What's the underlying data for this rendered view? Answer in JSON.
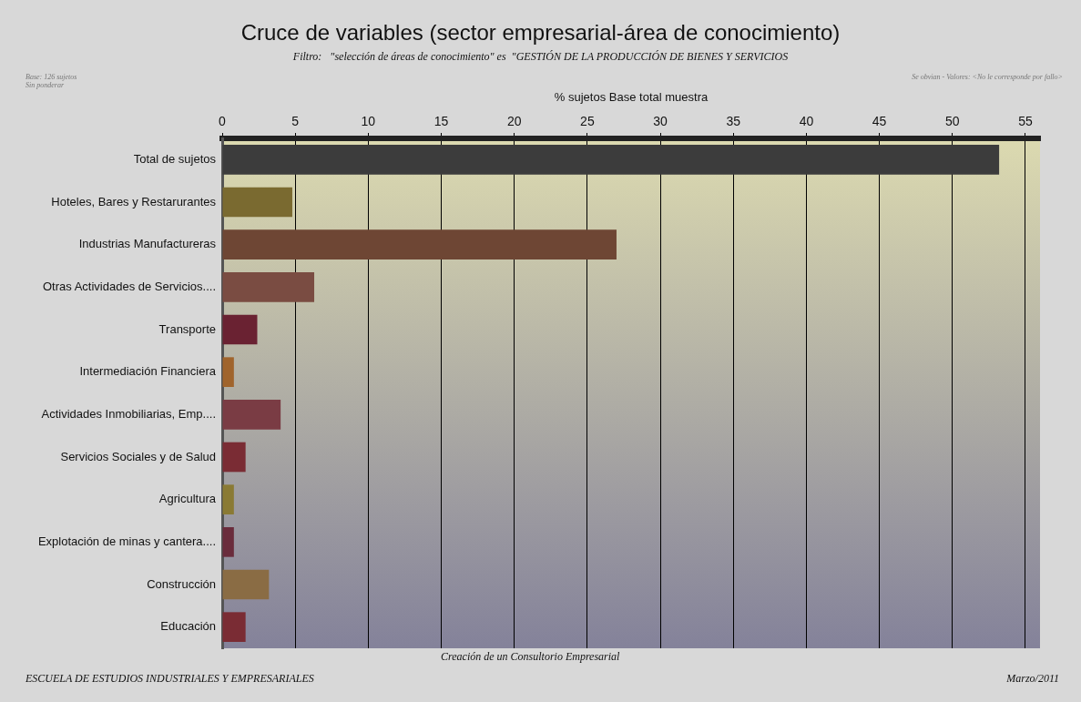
{
  "chart_data": {
    "type": "bar",
    "orientation": "horizontal",
    "title": "Cruce de variables (sector empresarial-área de conocimiento)",
    "subtitle": "Filtro:   \"selección de áreas de conocimiento\" es  \"GESTIÓN DE LA PRODUCCIÓN DE BIENES Y SERVICIOS",
    "xlabel": "% sujetos Base total muestra",
    "categories": [
      "Total de sujetos",
      "Hoteles, Bares y Restarurantes",
      "Industrias Manufactureras",
      "Otras Actividades de Servicios....",
      "Transporte",
      "Intermediación Financiera",
      "Actividades Inmobiliarias, Emp....",
      "Servicios Sociales y de Salud",
      "Agricultura",
      "Explotación de minas y cantera....",
      "Construcción",
      "Educación"
    ],
    "values": [
      53.2,
      4.8,
      27.0,
      6.3,
      2.4,
      0.8,
      4.0,
      1.6,
      0.8,
      0.8,
      3.2,
      1.6
    ],
    "colors": [
      "#3c3c3c",
      "#7a6a30",
      "#6e4634",
      "#7a4c42",
      "#6a2232",
      "#a0642c",
      "#7a3c44",
      "#7a2c34",
      "#8a7a34",
      "#6a2c3c",
      "#8a6c44",
      "#7a2c34"
    ],
    "xlim": [
      0,
      56
    ],
    "xticks": [
      0,
      5,
      10,
      15,
      20,
      25,
      30,
      35,
      40,
      45,
      50,
      55
    ],
    "grid": "x",
    "legend": false,
    "annotations": [
      "Base: 126 sujetos\nSin ponderar",
      "Se obvian - Valores: <No le corresponde por fallo>",
      "Creación de un Consultorio Empresarial",
      "ESCUELA DE ESTUDIOS INDUSTRIALES Y EMPRESARIALES",
      "Marzo/2011"
    ]
  }
}
